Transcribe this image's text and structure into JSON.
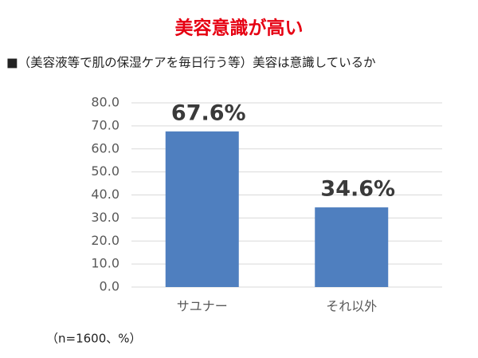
{
  "chart_data": {
    "type": "bar",
    "title": "美容意識が高い",
    "subtitle": "■（美容液等で肌の保湿ケアを毎日行う等）美容は意識しているか",
    "categories": [
      "サユナー",
      "それ以外"
    ],
    "values": [
      67.6,
      34.6
    ],
    "value_labels": [
      "67.6%",
      "34.6%"
    ],
    "color": "#4f7fbf",
    "ylim": [
      0,
      80
    ],
    "yticks": [
      {
        "value": 0,
        "label": "0.0"
      },
      {
        "value": 10,
        "label": "10.0"
      },
      {
        "value": 20,
        "label": "20.0"
      },
      {
        "value": 30,
        "label": "30.0"
      },
      {
        "value": 40,
        "label": "40.0"
      },
      {
        "value": 50,
        "label": "50.0"
      },
      {
        "value": 60,
        "label": "60.0"
      },
      {
        "value": 70,
        "label": "70.0"
      },
      {
        "value": 80,
        "label": "80.0"
      }
    ],
    "grid": true,
    "note": "（n=1600、%）"
  }
}
